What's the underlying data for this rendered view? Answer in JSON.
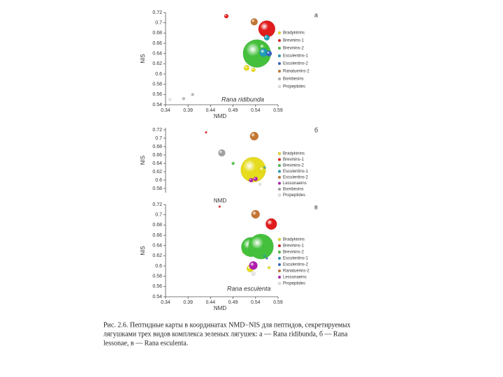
{
  "chart_data": [
    {
      "type": "bubble",
      "panel_label": "а",
      "x_label": "NMD",
      "y_label": "NIS",
      "annotation": "Rana ridibunda",
      "xlim": [
        0.34,
        0.59
      ],
      "xticks": [
        0.34,
        0.39,
        0.44,
        0.49,
        0.54,
        0.59
      ],
      "ylim": [
        0.54,
        0.72
      ],
      "yticks": [
        0.54,
        0.56,
        0.58,
        0.6,
        0.62,
        0.64,
        0.66,
        0.68,
        0.7,
        0.72
      ],
      "series": [
        {
          "name": "Bradykinins",
          "color": "#e6dc1e",
          "x": [
            0.52,
            0.535
          ],
          "y": [
            0.612,
            0.608
          ],
          "size": [
            4,
            3
          ]
        },
        {
          "name": "Brevinins-1",
          "color": "#e01c1c",
          "x": [
            0.475,
            0.565
          ],
          "y": [
            0.713,
            0.688
          ],
          "size": [
            3,
            12
          ]
        },
        {
          "name": "Brevinins-2",
          "color": "#44c03c",
          "x": [
            0.543,
            0.557
          ],
          "y": [
            0.64,
            0.652
          ],
          "size": [
            20,
            6
          ]
        },
        {
          "name": "Esculentins-1",
          "color": "#1e9cb4",
          "x": [
            0.565,
            0.558
          ],
          "y": [
            0.671,
            0.642
          ],
          "size": [
            4,
            6
          ]
        },
        {
          "name": "Esculentins-2",
          "color": "#3462c4",
          "x": [
            0.57
          ],
          "y": [
            0.64
          ],
          "size": [
            4
          ]
        },
        {
          "name": "Ranatuerins-2",
          "color": "#c47632",
          "x": [
            0.537
          ],
          "y": [
            0.702
          ],
          "size": [
            5
          ]
        },
        {
          "name": "Bombesins",
          "color": "#b4b4b4",
          "x": [
            0.38,
            0.4
          ],
          "y": [
            0.552,
            0.56
          ],
          "size": [
            2,
            2
          ]
        },
        {
          "name": "Propeptides",
          "color": "#e4e4e4",
          "x": [
            0.35
          ],
          "y": [
            0.55
          ],
          "size": [
            2
          ]
        }
      ]
    },
    {
      "type": "bubble",
      "panel_label": "б",
      "x_label": "NMD",
      "y_label": "NIS",
      "xlim": [
        0.34,
        0.59
      ],
      "ylim": [
        0.57,
        0.725
      ],
      "yticks": [
        0.58,
        0.6,
        0.62,
        0.64,
        0.66,
        0.68,
        0.7,
        0.72
      ],
      "series": [
        {
          "name": "Bradykinins",
          "color": "#e6dc1e",
          "x": [
            0.535,
            0.555
          ],
          "y": [
            0.625,
            0.625
          ],
          "size": [
            18,
            5
          ]
        },
        {
          "name": "Brevinins-1",
          "color": "#e01c1c",
          "x": [
            0.43
          ],
          "y": [
            0.714
          ],
          "size": [
            1.5
          ]
        },
        {
          "name": "Brevinins-2",
          "color": "#44c03c",
          "x": [
            0.49
          ],
          "y": [
            0.64
          ],
          "size": [
            2
          ]
        },
        {
          "name": "Esculentins-1",
          "color": "#1e9cb4",
          "x": [
            0.56
          ],
          "y": [
            0.63
          ],
          "size": [
            1.5
          ]
        },
        {
          "name": "Esculentins-2",
          "color": "#c47632",
          "x": [
            0.537
          ],
          "y": [
            0.705
          ],
          "size": [
            6
          ]
        },
        {
          "name": "Lessonaeins",
          "color": "#b01eb0",
          "x": [
            0.53,
            0.54
          ],
          "y": [
            0.6,
            0.603
          ],
          "size": [
            3,
            3
          ]
        },
        {
          "name": "Bombesins",
          "color": "#a0a0a0",
          "x": [
            0.465
          ],
          "y": [
            0.665
          ],
          "size": [
            5
          ]
        },
        {
          "name": "Propeptides",
          "color": "#e4e4e4",
          "x": [
            0.55
          ],
          "y": [
            0.59
          ],
          "size": [
            2
          ]
        }
      ]
    },
    {
      "type": "bubble",
      "panel_label": "в",
      "x_label": "NMD",
      "y_label": "NIS",
      "annotation": "Rana esculenta",
      "xlim": [
        0.34,
        0.59
      ],
      "xticks": [
        0.34,
        0.39,
        0.44,
        0.49,
        0.54,
        0.59
      ],
      "ylim": [
        0.54,
        0.72
      ],
      "yticks": [
        0.54,
        0.56,
        0.58,
        0.6,
        0.62,
        0.64,
        0.66,
        0.68,
        0.7,
        0.72
      ],
      "series": [
        {
          "name": "Bradykinins",
          "color": "#e6dc1e",
          "x": [
            0.515,
            0.528,
            0.57
          ],
          "y": [
            0.628,
            0.595,
            0.597
          ],
          "size": [
            3,
            5,
            2
          ]
        },
        {
          "name": "Brevinins-1",
          "color": "#e01c1c",
          "x": [
            0.575,
            0.46
          ],
          "y": [
            0.682,
            0.716
          ],
          "size": [
            8,
            1.5
          ]
        },
        {
          "name": "Brevinins-2",
          "color": "#44c03c",
          "x": [
            0.53,
            0.552
          ],
          "y": [
            0.637,
            0.638
          ],
          "size": [
            14,
            18
          ]
        },
        {
          "name": "Esculentins-1",
          "color": "#1e9cb4",
          "x": [
            0.56
          ],
          "y": [
            0.62
          ],
          "size": [
            1.5
          ]
        },
        {
          "name": "Esculentins-2",
          "color": "#3462c4",
          "x": [
            0.565
          ],
          "y": [
            0.615
          ],
          "size": [
            1.5
          ]
        },
        {
          "name": "Ranatuerins-2",
          "color": "#c47632",
          "x": [
            0.54
          ],
          "y": [
            0.701
          ],
          "size": [
            6
          ]
        },
        {
          "name": "Lessonaeins",
          "color": "#b01eb0",
          "x": [
            0.535
          ],
          "y": [
            0.601
          ],
          "size": [
            6
          ]
        },
        {
          "name": "Propeptides",
          "color": "#e4e4e4",
          "x": [
            0.535
          ],
          "y": [
            0.585
          ],
          "size": [
            3
          ]
        }
      ]
    }
  ],
  "caption": {
    "line1": "Рис. 2.6. Пептидные карты в координатах NMD−NIS для пептидов, секретируемых",
    "line2": "лягушками трех видов комплекса зеленых лягушек: а — Rana ridibunda, б — Rana",
    "line3": "lessonae, в — Rana esculenta."
  }
}
